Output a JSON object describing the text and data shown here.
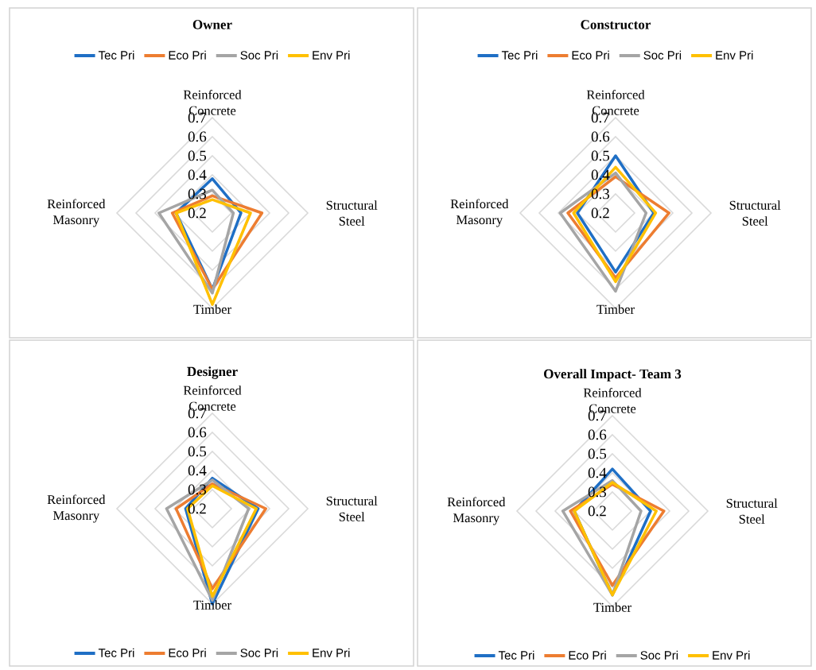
{
  "chart_data": [
    {
      "type": "radar",
      "title": "Owner",
      "categories": [
        "Reinforced Concrete",
        "Structural Steel",
        "Timber",
        "Reinforced Masonry"
      ],
      "ylim": [
        0.2,
        0.7
      ],
      "yticks": [
        0.2,
        0.3,
        0.4,
        0.5,
        0.6,
        0.7
      ],
      "grid": true,
      "legend": "top",
      "series": [
        {
          "name": "Tec Pri",
          "color": "#1f6fc5",
          "values": [
            0.38,
            0.35,
            0.6,
            0.39
          ]
        },
        {
          "name": "Eco Pri",
          "color": "#ed7d31",
          "values": [
            0.29,
            0.46,
            0.6,
            0.41
          ]
        },
        {
          "name": "Soc Pri",
          "color": "#a5a5a5",
          "values": [
            0.32,
            0.31,
            0.62,
            0.48
          ]
        },
        {
          "name": "Env Pri",
          "color": "#ffc000",
          "values": [
            0.27,
            0.4,
            0.68,
            0.39
          ]
        }
      ]
    },
    {
      "type": "radar",
      "title": "Constructor",
      "categories": [
        "Reinforced Concrete",
        "Structural Steel",
        "Timber",
        "Reinforced Masonry"
      ],
      "ylim": [
        0.2,
        0.7
      ],
      "yticks": [
        0.2,
        0.3,
        0.4,
        0.5,
        0.6,
        0.7
      ],
      "grid": true,
      "legend": "top",
      "series": [
        {
          "name": "Tec Pri",
          "color": "#1f6fc5",
          "values": [
            0.5,
            0.4,
            0.51,
            0.4
          ]
        },
        {
          "name": "Eco Pri",
          "color": "#ed7d31",
          "values": [
            0.39,
            0.48,
            0.54,
            0.45
          ]
        },
        {
          "name": "Soc Pri",
          "color": "#a5a5a5",
          "values": [
            0.41,
            0.36,
            0.61,
            0.49
          ]
        },
        {
          "name": "Env Pri",
          "color": "#ffc000",
          "values": [
            0.44,
            0.41,
            0.56,
            0.42
          ]
        }
      ]
    },
    {
      "type": "radar",
      "title": "Designer",
      "categories": [
        "Reinforced Concrete",
        "Structural Steel",
        "Timber",
        "Reinforced Masonry"
      ],
      "ylim": [
        0.2,
        0.7
      ],
      "yticks": [
        0.2,
        0.3,
        0.4,
        0.5,
        0.6,
        0.7
      ],
      "grid": true,
      "legend": "bottom",
      "series": [
        {
          "name": "Tec Pri",
          "color": "#1f6fc5",
          "values": [
            0.36,
            0.44,
            0.7,
            0.34
          ]
        },
        {
          "name": "Eco Pri",
          "color": "#ed7d31",
          "values": [
            0.33,
            0.48,
            0.62,
            0.39
          ]
        },
        {
          "name": "Soc Pri",
          "color": "#a5a5a5",
          "values": [
            0.35,
            0.39,
            0.68,
            0.44
          ]
        },
        {
          "name": "Env Pri",
          "color": "#ffc000",
          "values": [
            0.32,
            0.43,
            0.66,
            0.33
          ]
        }
      ]
    },
    {
      "type": "radar",
      "title": "Overall Impact- Team 3",
      "categories": [
        "Reinforced Concrete",
        "Structural Steel",
        "Timber",
        "Reinforced Masonry"
      ],
      "ylim": [
        0.2,
        0.7
      ],
      "yticks": [
        0.2,
        0.3,
        0.4,
        0.5,
        0.6,
        0.7
      ],
      "grid": true,
      "legend": "bottom",
      "series": [
        {
          "name": "Tec Pri",
          "color": "#1f6fc5",
          "values": [
            0.42,
            0.4,
            0.64,
            0.4
          ]
        },
        {
          "name": "Eco Pri",
          "color": "#ed7d31",
          "values": [
            0.34,
            0.47,
            0.59,
            0.42
          ]
        },
        {
          "name": "Soc Pri",
          "color": "#a5a5a5",
          "values": [
            0.36,
            0.35,
            0.64,
            0.46
          ]
        },
        {
          "name": "Env Pri",
          "color": "#ffc000",
          "values": [
            0.35,
            0.43,
            0.64,
            0.4
          ]
        }
      ]
    }
  ]
}
